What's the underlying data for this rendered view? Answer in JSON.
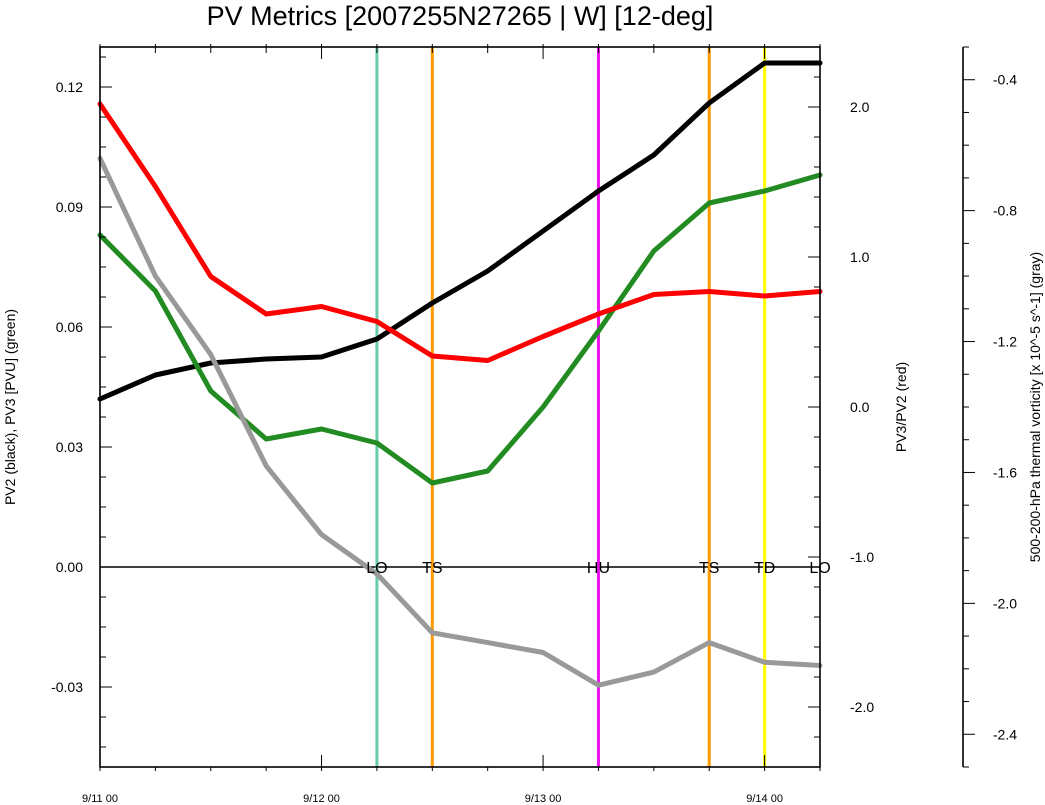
{
  "chart_data": {
    "type": "line",
    "title": "PV Metrics [2007255N27265 | W] [12-deg]",
    "x_tick_labels": [
      "9/11 00",
      "9/12 00",
      "9/13 00",
      "9/14 00"
    ],
    "x_ticks_days": [
      0,
      1,
      2,
      3
    ],
    "x_range_days": [
      0,
      3.25
    ],
    "left_axis": {
      "label": "PV2 (black), PV3 [PVU] (green)",
      "range": [
        -0.05,
        0.13
      ],
      "ticks": [
        "-0.03",
        "0.00",
        "0.03",
        "0.06",
        "0.09",
        "0.12"
      ],
      "tick_values": [
        -0.03,
        0,
        0.03,
        0.06,
        0.09,
        0.12
      ]
    },
    "right_axis_1": {
      "label": "PV3/PV2 (red)",
      "range": [
        -2.4,
        2.4
      ],
      "ticks": [
        "-2.0",
        "-1.0",
        "0.0",
        "1.0",
        "2.0"
      ],
      "tick_values": [
        -2,
        -1,
        0,
        1,
        2
      ]
    },
    "right_axis_2": {
      "label": "500-200-hPa thermal vorticity [x 10^-5 s^-1] (gray)",
      "range": [
        -2.5,
        -0.3
      ],
      "ticks": [
        "-2.4",
        "-2.0",
        "-1.6",
        "-1.2",
        "-0.8",
        "-0.4"
      ],
      "tick_values": [
        -2.4,
        -2.0,
        -1.6,
        -1.2,
        -0.8,
        -0.4
      ]
    },
    "x_days": [
      0,
      0.25,
      0.5,
      0.75,
      1.0,
      1.25,
      1.5,
      1.75,
      2.0,
      2.25,
      2.5,
      2.75,
      3.0,
      3.25
    ],
    "series": [
      {
        "name": "PV2",
        "axis": "left",
        "color": "#000000",
        "values": [
          0.042,
          0.048,
          0.051,
          0.052,
          0.0525,
          0.057,
          0.066,
          0.074,
          0.084,
          0.094,
          0.103,
          0.116,
          0.126,
          0.126
        ]
      },
      {
        "name": "PV3",
        "axis": "left",
        "color": "#228b22",
        "values": [
          0.083,
          0.069,
          0.044,
          0.032,
          0.0345,
          0.031,
          0.021,
          0.024,
          0.04,
          0.059,
          0.079,
          0.091,
          0.094,
          0.098
        ]
      },
      {
        "name": "PV3/PV2",
        "axis": "right1",
        "color": "#ff0000",
        "values": [
          2.02,
          1.47,
          0.87,
          0.62,
          0.67,
          0.57,
          0.34,
          0.31,
          0.47,
          0.62,
          0.75,
          0.77,
          0.74,
          0.77
        ]
      },
      {
        "name": "500-200-hPa thermal vorticity",
        "axis": "right2",
        "color": "#999999",
        "values": [
          -0.64,
          -1.0,
          -1.24,
          -1.58,
          -1.79,
          -1.91,
          -2.09,
          -2.12,
          -2.15,
          -2.25,
          -2.21,
          -2.12,
          -2.18,
          -2.19
        ]
      }
    ],
    "stage_markers": [
      {
        "label": "LO",
        "x_day": 1.25,
        "color": "#66ccaa"
      },
      {
        "label": "TS",
        "x_day": 1.5,
        "color": "#ff9900"
      },
      {
        "label": "HU",
        "x_day": 2.25,
        "color": "#ee11ee"
      },
      {
        "label": "TS",
        "x_day": 2.75,
        "color": "#ff9900"
      },
      {
        "label": "TD",
        "x_day": 3.0,
        "color": "#ffff00"
      },
      {
        "label": "LO",
        "x_day": 3.25,
        "color": null
      }
    ],
    "zero_line": true,
    "grid": false
  }
}
